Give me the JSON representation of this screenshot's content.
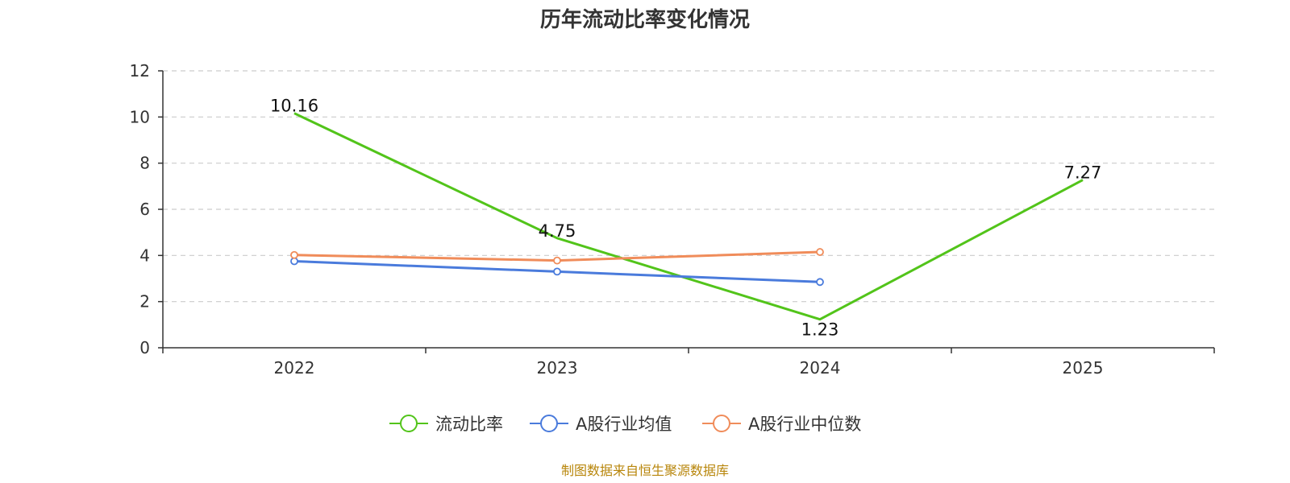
{
  "chart_data": {
    "type": "line",
    "title": "历年流动比率变化情况",
    "categories": [
      "2022",
      "2023",
      "2024",
      "2025"
    ],
    "ylim": [
      0,
      12
    ],
    "yticks": [
      0,
      2,
      4,
      6,
      8,
      10,
      12
    ],
    "grid": true,
    "legend_position": "bottom",
    "series": [
      {
        "name": "流动比率",
        "color": "#52c41a",
        "values": [
          10.16,
          4.75,
          1.23,
          7.27
        ],
        "labels": [
          "10.16",
          "4.75",
          "1.23",
          "7.27"
        ],
        "show_markers": false
      },
      {
        "name": "A股行业均值",
        "color": "#4a7bdc",
        "values": [
          3.75,
          3.3,
          2.85,
          null
        ],
        "show_markers": true
      },
      {
        "name": "A股行业中位数",
        "color": "#f08c5a",
        "values": [
          4.02,
          3.78,
          4.15,
          null
        ],
        "show_markers": true
      }
    ]
  },
  "source_note": "制图数据来自恒生聚源数据库"
}
